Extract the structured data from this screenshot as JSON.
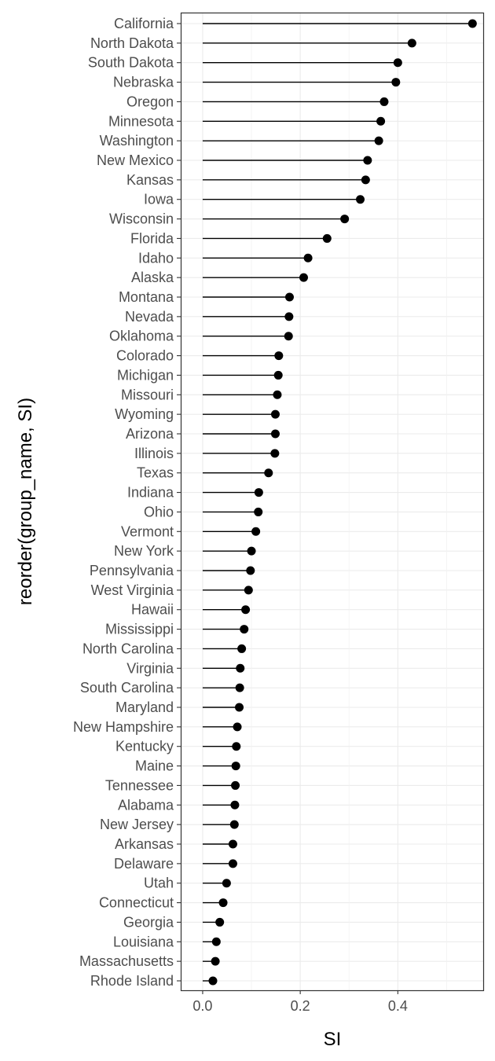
{
  "chart_data": {
    "type": "lollipop",
    "xlabel": "SI",
    "ylabel": "reorder(group_name, SI)",
    "xlim": [
      -0.045,
      0.575
    ],
    "x_ticks": [
      0.0,
      0.2,
      0.4
    ],
    "x_tick_labels": [
      "0.0",
      "0.2",
      "0.4"
    ],
    "grid": true,
    "theme": "bw",
    "point_color": "#000000",
    "categories": [
      "California",
      "North Dakota",
      "South Dakota",
      "Nebraska",
      "Oregon",
      "Minnesota",
      "Washington",
      "New Mexico",
      "Kansas",
      "Iowa",
      "Wisconsin",
      "Florida",
      "Idaho",
      "Alaska",
      "Montana",
      "Nevada",
      "Oklahoma",
      "Colorado",
      "Michigan",
      "Missouri",
      "Wyoming",
      "Arizona",
      "Illinois",
      "Texas",
      "Indiana",
      "Ohio",
      "Vermont",
      "New York",
      "Pennsylvania",
      "West Virginia",
      "Hawaii",
      "Mississippi",
      "North Carolina",
      "Virginia",
      "South Carolina",
      "Maryland",
      "New Hampshire",
      "Kentucky",
      "Maine",
      "Tennessee",
      "Alabama",
      "New Jersey",
      "Arkansas",
      "Delaware",
      "Utah",
      "Connecticut",
      "Georgia",
      "Louisiana",
      "Massachusetts",
      "Rhode Island"
    ],
    "values": [
      0.553,
      0.429,
      0.4,
      0.396,
      0.372,
      0.365,
      0.361,
      0.338,
      0.334,
      0.323,
      0.291,
      0.255,
      0.216,
      0.207,
      0.178,
      0.177,
      0.176,
      0.156,
      0.155,
      0.153,
      0.149,
      0.149,
      0.148,
      0.135,
      0.115,
      0.114,
      0.109,
      0.1,
      0.098,
      0.094,
      0.088,
      0.085,
      0.08,
      0.077,
      0.076,
      0.075,
      0.071,
      0.069,
      0.068,
      0.067,
      0.066,
      0.065,
      0.062,
      0.062,
      0.049,
      0.042,
      0.035,
      0.028,
      0.026,
      0.021
    ]
  }
}
